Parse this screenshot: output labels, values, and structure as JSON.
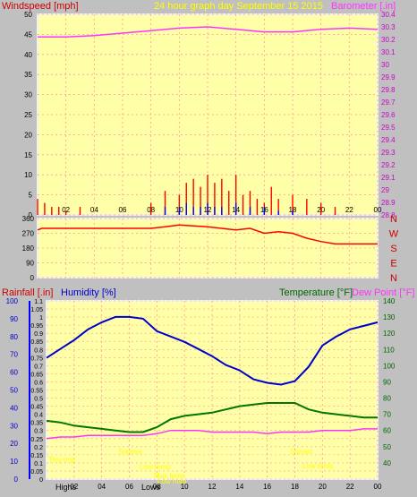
{
  "title": "24 hour graph day   September 15 2015",
  "colors": {
    "background": "#c0c0c0",
    "plot_bg": "#ffffa8",
    "grid": "#ff9999",
    "frame": "#f2f2f2",
    "wind_labels": "#cc0000",
    "wind": "#ff0000",
    "gust": "#ff0000",
    "wind_avg": "#0000ff",
    "baro": "#ff33ff",
    "dir": "#ff0000",
    "humidity": "#0000cc",
    "temp": "#007700",
    "dew": "#ff33ff",
    "rain_axis": "#0000ff",
    "temp_axis": "#006600",
    "annot": "#ffff00"
  },
  "chart_data": [
    {
      "type": "line",
      "name": "wind-barometer",
      "labels": {
        "left": "Windspeed [mph]",
        "right": "Barometer [.in]"
      },
      "x_ticks": [
        "02",
        "04",
        "06",
        "08",
        "10",
        "12",
        "14",
        "16",
        "18",
        "20",
        "22",
        "00"
      ],
      "y_left": {
        "min": 0,
        "max": 50,
        "ticks": [
          0,
          5,
          10,
          15,
          20,
          25,
          30,
          35,
          40,
          45,
          50
        ]
      },
      "y_right": {
        "min": 28.8,
        "max": 30.4,
        "ticks": [
          "28.8",
          "28.9",
          "29",
          "29.1",
          "29.2",
          "29.3",
          "29.4",
          "29.5",
          "29.6",
          "29.7",
          "29.8",
          "29.9",
          "30",
          "30.1",
          "30.2",
          "30.3",
          "30.4"
        ]
      },
      "barometer": {
        "x": [
          0,
          2,
          4,
          6,
          8,
          10,
          12,
          14,
          16,
          18,
          20,
          22,
          24
        ],
        "y": [
          30.22,
          30.22,
          30.23,
          30.25,
          30.27,
          30.29,
          30.3,
          30.28,
          30.26,
          30.26,
          30.28,
          30.29,
          30.28
        ]
      },
      "wind_gust_peaks": {
        "x": [
          0,
          0.5,
          1,
          1.5,
          2,
          3,
          4,
          8,
          9,
          10,
          10.5,
          11,
          11.5,
          12,
          12.5,
          13,
          13.5,
          14,
          14.5,
          15,
          15.5,
          16,
          16.5,
          17,
          18,
          19,
          20,
          21
        ],
        "y": [
          4,
          3,
          2,
          2,
          1,
          2,
          0,
          3,
          6,
          5,
          8,
          9,
          7,
          10,
          8,
          9,
          6,
          10,
          5,
          6,
          4,
          3,
          7,
          4,
          5,
          4,
          3,
          2
        ]
      },
      "wind_avg_peaks": {
        "x": [
          9,
          10,
          10.5,
          11,
          11.5,
          12,
          12.5,
          13,
          14,
          15,
          16,
          17,
          18
        ],
        "y": [
          2,
          2,
          3,
          2,
          2,
          3,
          2,
          2,
          3,
          2,
          2,
          1,
          1
        ]
      }
    },
    {
      "type": "line",
      "name": "wind-direction",
      "labels": {
        "right": [
          "N",
          "W",
          "S",
          "E",
          "N"
        ]
      },
      "x_ticks": [
        "02",
        "04",
        "06",
        "08",
        "10",
        "12",
        "14",
        "16",
        "18",
        "20",
        "22",
        "00"
      ],
      "y": {
        "min": 0,
        "max": 360,
        "ticks": [
          0,
          90,
          180,
          270,
          360
        ]
      },
      "direction": {
        "x": [
          0,
          0.3,
          1,
          2,
          4,
          6,
          8,
          9,
          10,
          11,
          12,
          13,
          14,
          15,
          16,
          17,
          18,
          19,
          20,
          21,
          22,
          24
        ],
        "y": [
          290,
          300,
          300,
          300,
          300,
          300,
          300,
          310,
          320,
          315,
          310,
          300,
          290,
          300,
          270,
          280,
          270,
          240,
          220,
          205,
          205,
          205
        ]
      }
    },
    {
      "type": "line",
      "name": "temp-humidity",
      "labels": {
        "rain": "Rainfall [.in]",
        "humidity": "Humidity [%]",
        "temp": "Temperature [°F]",
        "dew": "Dew Point [°F]"
      },
      "x_ticks": [
        "02",
        "04",
        "06",
        "08",
        "10",
        "12",
        "14",
        "16",
        "18",
        "20",
        "22",
        "00"
      ],
      "bottom_labels": [
        "Highs",
        "Lows"
      ],
      "humidity_axis": {
        "min": 0,
        "max": 100,
        "ticks": [
          0,
          10,
          20,
          30,
          40,
          50,
          60,
          70,
          80,
          90,
          100
        ]
      },
      "rain_axis": {
        "min": 0,
        "max": 1.1,
        "ticks": [
          "0",
          "0.05",
          "0.1",
          "0.15",
          "0.2",
          "0.25",
          "0.3",
          "0.35",
          "0.4",
          "0.45",
          "0.5",
          "0.55",
          "0.6",
          "0.65",
          "0.7",
          "0.75",
          "0.8",
          "0.85",
          "0.9",
          "0.95",
          "1",
          "1.05",
          "1.1"
        ]
      },
      "temp_axis": {
        "min": 30,
        "max": 140,
        "ticks": [
          40,
          50,
          60,
          70,
          80,
          90,
          100,
          110,
          120,
          130,
          140
        ]
      },
      "humidity": {
        "x": [
          0,
          1,
          2,
          3,
          4,
          5,
          6,
          7,
          8,
          9,
          10,
          11,
          12,
          13,
          14,
          15,
          16,
          17,
          18,
          19,
          20,
          21,
          22,
          23,
          24
        ],
        "y": [
          68,
          73,
          78,
          84,
          88,
          91,
          91,
          90,
          83,
          80,
          77,
          73,
          69,
          64,
          61,
          56,
          54,
          53,
          55,
          63,
          75,
          80,
          84,
          86,
          88
        ]
      },
      "temperature": {
        "x": [
          0,
          1,
          2,
          3,
          4,
          5,
          6,
          7,
          8,
          9,
          10,
          11,
          12,
          13,
          14,
          15,
          16,
          17,
          18,
          19,
          20,
          21,
          22,
          23,
          24
        ],
        "y": [
          66,
          65,
          63,
          62,
          61,
          60,
          59,
          59,
          62,
          67,
          69,
          70,
          71,
          73,
          75,
          76,
          77,
          77,
          77,
          73,
          71,
          70,
          69,
          68,
          68
        ]
      },
      "dewpoint": {
        "x": [
          0,
          1,
          2,
          3,
          4,
          5,
          6,
          7,
          8,
          9,
          10,
          11,
          12,
          13,
          14,
          15,
          16,
          17,
          18,
          19,
          20,
          21,
          22,
          23,
          24
        ],
        "y": [
          55,
          56,
          56,
          57,
          57,
          57,
          57,
          57,
          58,
          60,
          60,
          60,
          59,
          59,
          59,
          59,
          58,
          59,
          59,
          59,
          60,
          60,
          60,
          61,
          61
        ]
      },
      "annotations": [
        "Tiny tmp",
        "Sunrise",
        "Low temp",
        "Sunset",
        "Low temp",
        "Max temp",
        "Low hum"
      ]
    }
  ]
}
